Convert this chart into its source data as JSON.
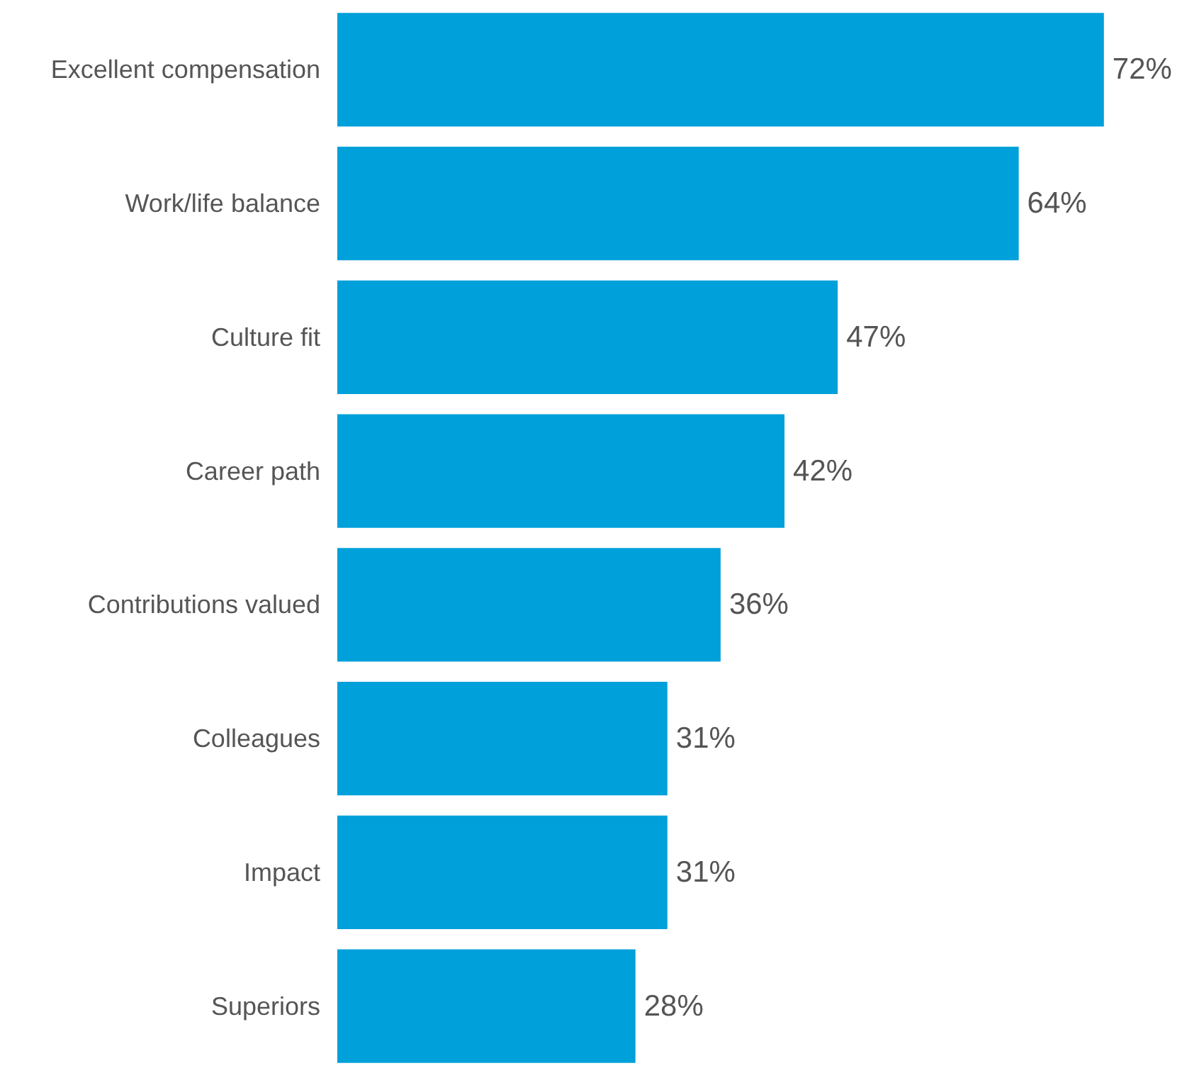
{
  "chart_data": {
    "type": "bar",
    "orientation": "horizontal",
    "categories": [
      "Excellent compensation",
      "Work/life balance",
      "Culture fit",
      "Career path",
      "Contributions valued",
      "Colleagues",
      "Impact",
      "Superiors"
    ],
    "values": [
      72,
      64,
      47,
      42,
      36,
      31,
      31,
      28
    ],
    "value_labels": [
      "72%",
      "64%",
      "47%",
      "42%",
      "36%",
      "31%",
      "31%",
      "28%"
    ],
    "color": "#00a0da",
    "tick_labels": "y"
  }
}
